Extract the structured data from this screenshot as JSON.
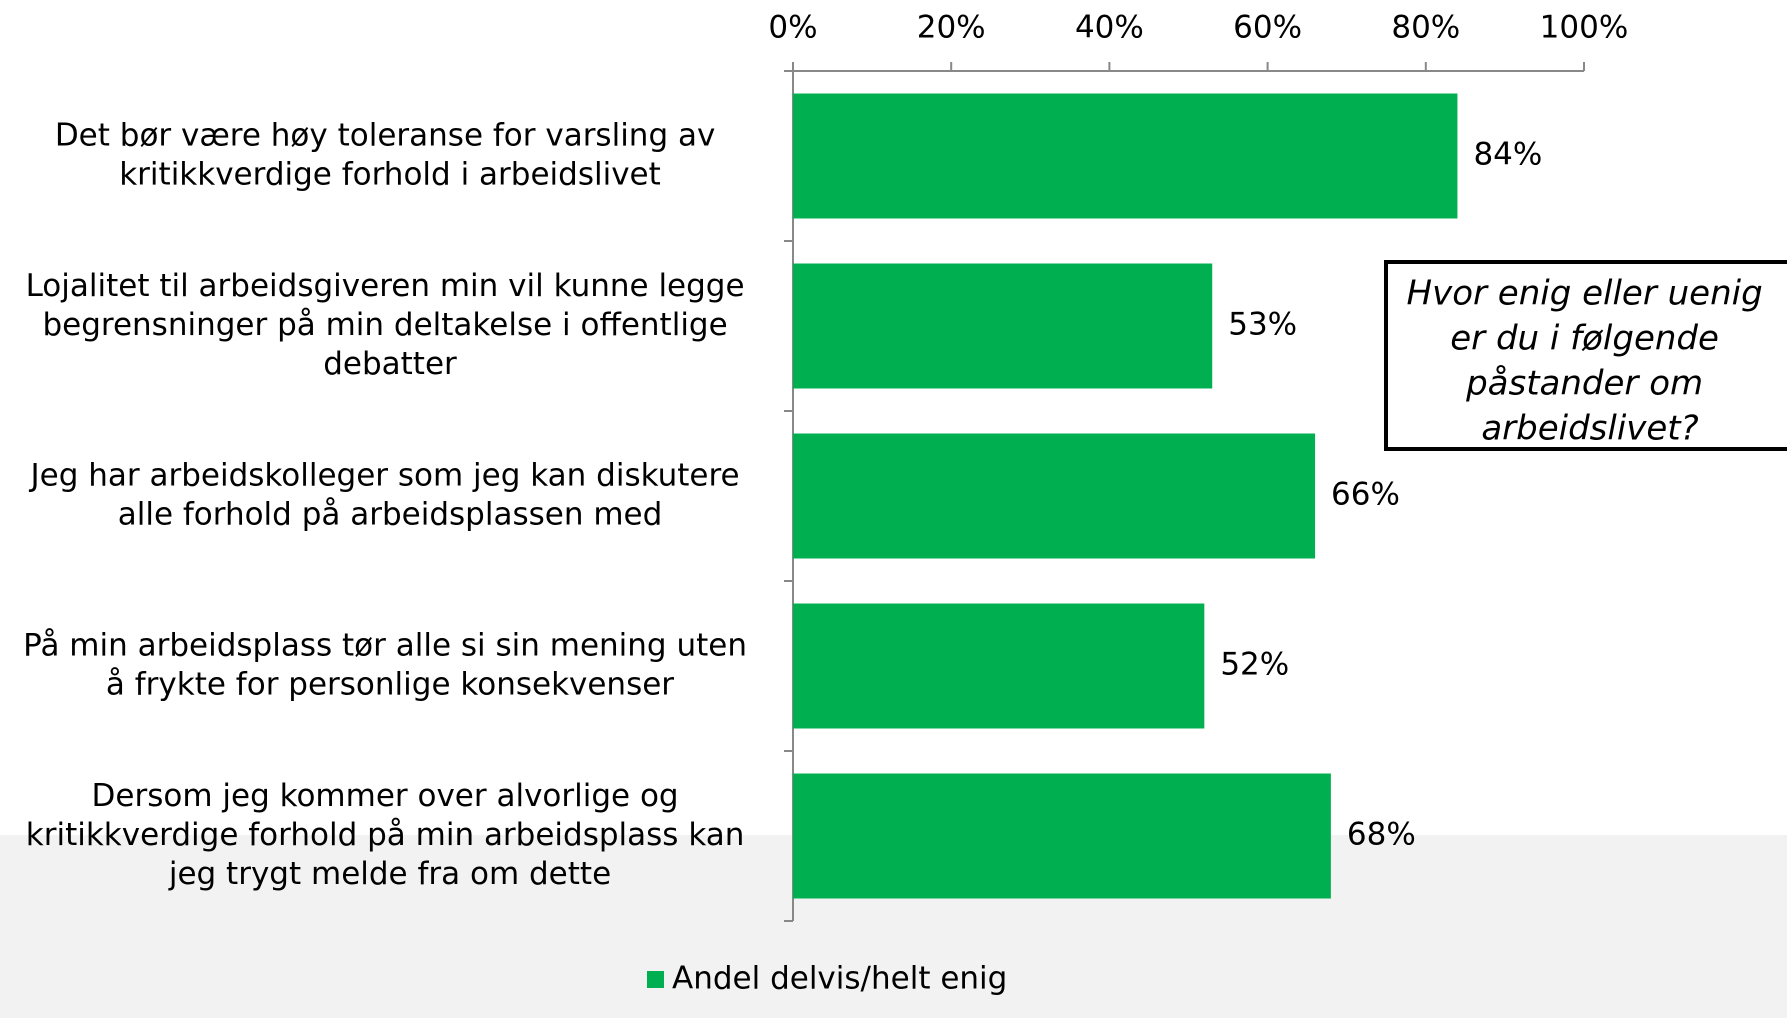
{
  "chart_data": {
    "type": "barh",
    "categories": [
      "Det bør være høy toleranse for varsling av kritikkverdige forhold i arbeidslivet",
      "Lojalitet til arbeidsgiveren min vil kunne legge begrensninger på min deltakelse i offentlige debatter",
      "Jeg har arbeidskolleger som jeg kan diskutere alle forhold på arbeidsplassen med",
      "På min arbeidsplass tør alle si sin mening uten å frykte for personlige konsekvenser",
      "Dersom jeg kommer over alvorlige og kritikkverdige forhold på min arbeidsplass kan jeg trygt melde fra om dette"
    ],
    "series": [
      {
        "name": "Andel delvis/helt enig",
        "color": "#00b050",
        "values": [
          84,
          53,
          66,
          52,
          68
        ],
        "value_labels": [
          "84%",
          "53%",
          "66%",
          "52%",
          "68%"
        ]
      }
    ],
    "xlim": [
      0,
      100
    ],
    "xticks": [
      {
        "value": 0,
        "label": "0%"
      },
      {
        "value": 20,
        "label": "20%"
      },
      {
        "value": 40,
        "label": "40%"
      },
      {
        "value": 60,
        "label": "60%"
      },
      {
        "value": 80,
        "label": "80%"
      },
      {
        "value": 100,
        "label": "100%"
      }
    ],
    "annotation": "Hvor enig eller uenig er du i følgende påstander om arbeidslivet?",
    "legend": "bottom"
  }
}
